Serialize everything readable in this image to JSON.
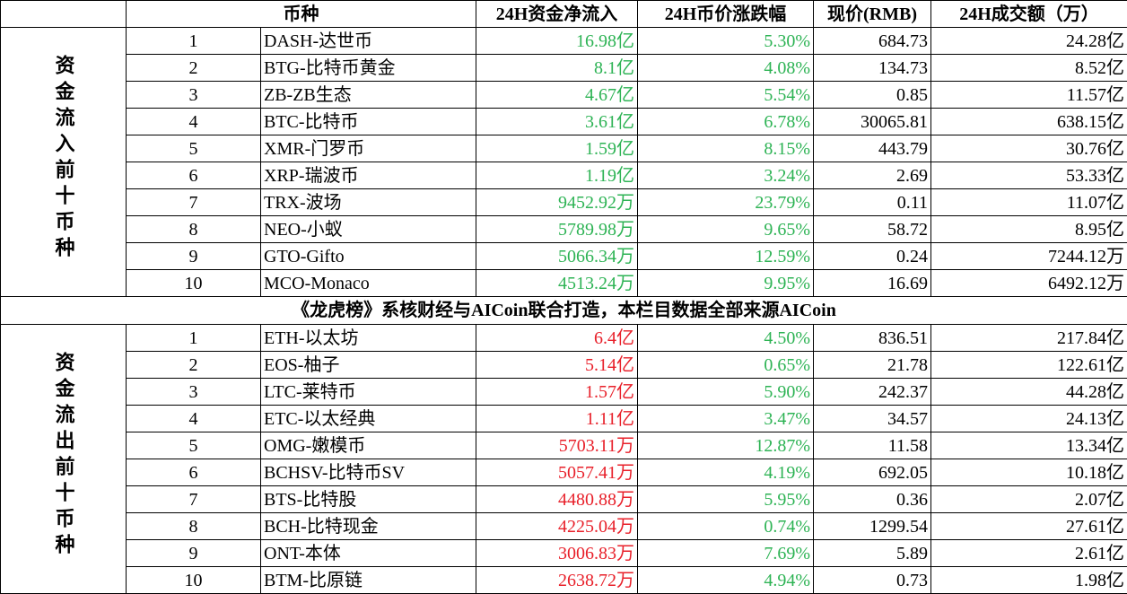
{
  "table": {
    "header": [
      "币种",
      "24H资金净流入",
      "24H币价涨跌幅",
      "现价(RMB)",
      "24H成交额（万）"
    ],
    "note": "《龙虎榜》系核财经与AICoin联合打造，本栏目数据全部来源AICoin",
    "groups": [
      {
        "label": "资金流入前十币种",
        "kind": "in",
        "rows": [
          [
            "1",
            "DASH-达世币",
            "16.98亿",
            "5.30%",
            "684.73",
            "24.28亿"
          ],
          [
            "2",
            "BTG-比特币黄金",
            "8.1亿",
            "4.08%",
            "134.73",
            "8.52亿"
          ],
          [
            "3",
            "ZB-ZB生态",
            "4.67亿",
            "5.54%",
            "0.85",
            "11.57亿"
          ],
          [
            "4",
            "BTC-比特币",
            "3.61亿",
            "6.78%",
            "30065.81",
            "638.15亿"
          ],
          [
            "5",
            "XMR-门罗币",
            "1.59亿",
            "8.15%",
            "443.79",
            "30.76亿"
          ],
          [
            "6",
            "XRP-瑞波币",
            "1.19亿",
            "3.24%",
            "2.69",
            "53.33亿"
          ],
          [
            "7",
            "TRX-波场",
            "9452.92万",
            "23.79%",
            "0.11",
            "11.07亿"
          ],
          [
            "8",
            "NEO-小蚁",
            "5789.98万",
            "9.65%",
            "58.72",
            "8.95亿"
          ],
          [
            "9",
            "GTO-Gifto",
            "5066.34万",
            "12.59%",
            "0.24",
            "7244.12万"
          ],
          [
            "10",
            "MCO-Monaco",
            "4513.24万",
            "9.95%",
            "16.69",
            "6492.12万"
          ]
        ]
      },
      {
        "label": "资金流出前十币种",
        "kind": "out",
        "rows": [
          [
            "1",
            "ETH-以太坊",
            "6.4亿",
            "4.50%",
            "836.51",
            "217.84亿"
          ],
          [
            "2",
            "EOS-柚子",
            "5.14亿",
            "0.65%",
            "21.78",
            "122.61亿"
          ],
          [
            "3",
            "LTC-莱特币",
            "1.57亿",
            "5.90%",
            "242.37",
            "44.28亿"
          ],
          [
            "4",
            "ETC-以太经典",
            "1.11亿",
            "3.47%",
            "34.57",
            "24.13亿"
          ],
          [
            "5",
            "OMG-嫩模币",
            "5703.11万",
            "12.87%",
            "11.58",
            "13.34亿"
          ],
          [
            "6",
            "BCHSV-比特币SV",
            "5057.41万",
            "4.19%",
            "692.05",
            "10.18亿"
          ],
          [
            "7",
            "BTS-比特股",
            "4480.88万",
            "5.95%",
            "0.36",
            "2.07亿"
          ],
          [
            "8",
            "BCH-比特现金",
            "4225.04万",
            "0.74%",
            "1299.54",
            "27.61亿"
          ],
          [
            "9",
            "ONT-本体",
            "3006.83万",
            "7.69%",
            "5.89",
            "2.61亿"
          ],
          [
            "10",
            "BTM-比原链",
            "2638.72万",
            "4.94%",
            "0.73",
            "1.98亿"
          ]
        ]
      }
    ]
  }
}
